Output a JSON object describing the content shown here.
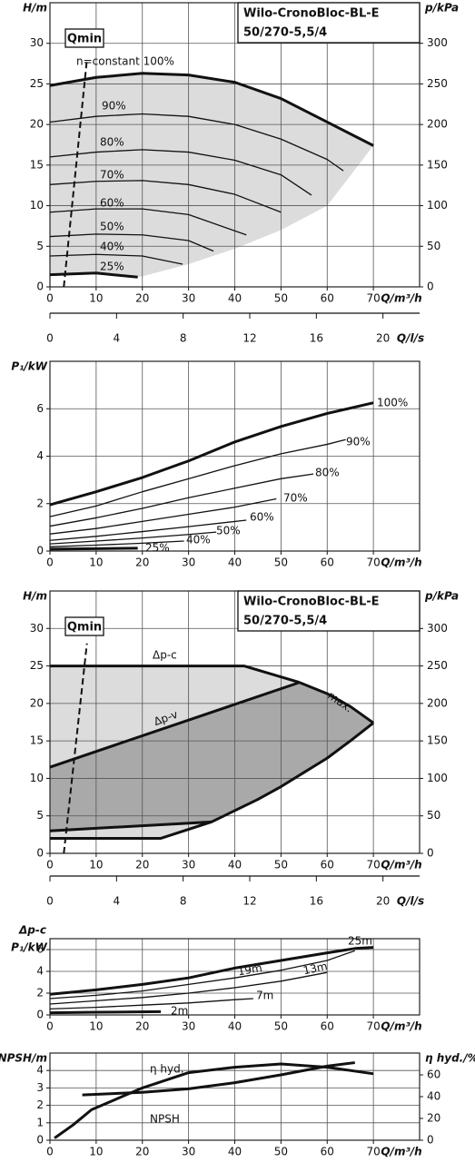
{
  "chart_data": [
    {
      "type": "line",
      "title": "Wilo-CronoBloc-BL-E",
      "subtitle": "50/270-5,5/4",
      "ylabel": "H/m",
      "y2label": "p/kPa",
      "xlabel": "Q/m³/h",
      "qmin_label": "Qmin",
      "grid": true,
      "xlim": [
        0,
        80
      ],
      "xticks": [
        0,
        10,
        20,
        30,
        40,
        50,
        60,
        70
      ],
      "ylim": [
        0,
        35
      ],
      "yticks": [
        0,
        5,
        10,
        15,
        20,
        25,
        30
      ],
      "y2lim": [
        0,
        350
      ],
      "y2ticks": [
        0,
        50,
        100,
        150,
        200,
        250,
        300
      ],
      "areas": [
        {
          "color": "#dcdcdc",
          "x": [
            0,
            10,
            20,
            30,
            40,
            50,
            60,
            70,
            60,
            50,
            40,
            30,
            20,
            19,
            10,
            0
          ],
          "values": [
            24.8,
            25.8,
            26.3,
            26.1,
            25.2,
            23.2,
            20.3,
            17.4,
            10,
            7,
            4.7,
            2.8,
            1.3,
            1.2,
            1.7,
            1.5
          ]
        }
      ],
      "series": [
        {
          "color": "#111",
          "width": 2,
          "dash": true,
          "x": [
            3,
            8
          ],
          "values": [
            0,
            28
          ]
        },
        {
          "label": "n=constant 100%",
          "color": "#111",
          "width": 3,
          "x": [
            0,
            10,
            20,
            30,
            40,
            50,
            60,
            70
          ],
          "values": [
            24.8,
            25.8,
            26.3,
            26.1,
            25.2,
            23.2,
            20.3,
            17.4
          ]
        },
        {
          "label": "90%",
          "color": "#111",
          "width": 1.3,
          "x": [
            0,
            10,
            20,
            30,
            40,
            50,
            60,
            63.5
          ],
          "values": [
            20.3,
            21,
            21.3,
            21,
            20,
            18.2,
            15.7,
            14.3
          ]
        },
        {
          "label": "80%",
          "color": "#111",
          "width": 1.3,
          "x": [
            0,
            10,
            20,
            30,
            40,
            50,
            56.6
          ],
          "values": [
            16,
            16.6,
            16.9,
            16.6,
            15.6,
            13.8,
            11.3
          ]
        },
        {
          "label": "70%",
          "color": "#111",
          "width": 1.3,
          "x": [
            0,
            10,
            20,
            30,
            40,
            50
          ],
          "values": [
            12.6,
            13,
            13.1,
            12.6,
            11.4,
            9.2
          ]
        },
        {
          "label": "60%",
          "color": "#111",
          "width": 1.3,
          "x": [
            0,
            10,
            20,
            30,
            42.5
          ],
          "values": [
            9.2,
            9.6,
            9.6,
            8.9,
            6.4
          ]
        },
        {
          "label": "50%",
          "color": "#111",
          "width": 1.3,
          "x": [
            0,
            10,
            20,
            30,
            35.4
          ],
          "values": [
            6.2,
            6.5,
            6.4,
            5.7,
            4.4
          ]
        },
        {
          "label": "40%",
          "color": "#111",
          "width": 1.3,
          "x": [
            0,
            10,
            20,
            28.7
          ],
          "values": [
            3.8,
            4,
            3.8,
            2.8
          ]
        },
        {
          "label": "25%",
          "color": "#111",
          "width": 3,
          "x": [
            0,
            10,
            19
          ],
          "values": [
            1.5,
            1.7,
            1.2
          ]
        }
      ]
    },
    {
      "type": "axis",
      "xlabel": "Q/l/s",
      "xlim": [
        0,
        22.2
      ],
      "xticks": [
        0,
        4,
        8,
        12,
        16,
        20
      ]
    },
    {
      "type": "line",
      "ylabel": "P₁/kW",
      "xlabel": "Q/m³/h",
      "grid": true,
      "xlim": [
        0,
        80
      ],
      "xticks": [
        0,
        10,
        20,
        30,
        40,
        50,
        60,
        70
      ],
      "ylim": [
        0,
        8
      ],
      "yticks": [
        0,
        2,
        4,
        6
      ],
      "series": [
        {
          "label": "100%",
          "color": "#111",
          "width": 3,
          "x": [
            0,
            10,
            20,
            30,
            40,
            50,
            60,
            70
          ],
          "values": [
            1.95,
            2.5,
            3.1,
            3.8,
            4.6,
            5.25,
            5.8,
            6.25
          ]
        },
        {
          "label": "90%",
          "color": "#111",
          "width": 1.3,
          "x": [
            0,
            10,
            20,
            30,
            40,
            50,
            60,
            64
          ],
          "values": [
            1.45,
            1.9,
            2.5,
            3.05,
            3.6,
            4.1,
            4.5,
            4.7
          ]
        },
        {
          "label": "80%",
          "color": "#111",
          "width": 1.3,
          "x": [
            0,
            10,
            20,
            30,
            40,
            50,
            57
          ],
          "values": [
            1.05,
            1.4,
            1.8,
            2.25,
            2.65,
            3.05,
            3.25
          ]
        },
        {
          "label": "70%",
          "color": "#111",
          "width": 1.3,
          "x": [
            0,
            10,
            20,
            30,
            40,
            49
          ],
          "values": [
            0.72,
            0.95,
            1.25,
            1.55,
            1.85,
            2.2
          ]
        },
        {
          "label": "60%",
          "color": "#111",
          "width": 1.3,
          "x": [
            0,
            10,
            20,
            30,
            42.5
          ],
          "values": [
            0.45,
            0.62,
            0.82,
            1.03,
            1.3
          ]
        },
        {
          "label": "50%",
          "color": "#111",
          "width": 1.3,
          "x": [
            0,
            10,
            20,
            30,
            36
          ],
          "values": [
            0.3,
            0.42,
            0.55,
            0.7,
            0.8
          ]
        },
        {
          "label": "40%",
          "color": "#111",
          "width": 1.3,
          "x": [
            0,
            10,
            20,
            29
          ],
          "values": [
            0.18,
            0.25,
            0.33,
            0.42
          ]
        },
        {
          "label": "25%",
          "color": "#111",
          "width": 3,
          "x": [
            0,
            10,
            19
          ],
          "values": [
            0.08,
            0.1,
            0.12
          ]
        }
      ]
    },
    {
      "type": "line",
      "title": "Wilo-CronoBloc-BL-E",
      "subtitle": "50/270-5,5/4",
      "ylabel": "H/m",
      "y2label": "p/kPa",
      "xlabel": "Q/m³/h",
      "qmin_label": "Qmin",
      "grid": true,
      "xlim": [
        0,
        80
      ],
      "xticks": [
        0,
        10,
        20,
        30,
        40,
        50,
        60,
        70
      ],
      "ylim": [
        0,
        35
      ],
      "yticks": [
        0,
        5,
        10,
        15,
        20,
        25,
        30
      ],
      "y2lim": [
        0,
        350
      ],
      "y2ticks": [
        0,
        50,
        100,
        150,
        200,
        250,
        300
      ],
      "areas": [
        {
          "color": "#dcdcdc",
          "x": [
            0,
            42,
            54,
            60,
            65,
            70,
            65,
            60,
            55,
            50,
            45,
            40,
            35,
            24,
            0
          ],
          "values": [
            25,
            25,
            22.8,
            21.3,
            19.6,
            17.4,
            15,
            12.7,
            10.8,
            8.9,
            7.2,
            5.7,
            4.2,
            2,
            2
          ]
        },
        {
          "color": "#a9a9a9",
          "x": [
            0,
            54,
            60,
            65,
            70,
            65,
            60,
            55,
            50,
            45,
            40,
            35,
            0
          ],
          "values": [
            11.5,
            22.8,
            21.3,
            19.6,
            17.4,
            15,
            12.7,
            10.8,
            8.9,
            7.2,
            5.7,
            4.2,
            3
          ]
        }
      ],
      "series": [
        {
          "color": "#111",
          "width": 2,
          "dash": true,
          "x": [
            3,
            8
          ],
          "values": [
            0,
            28
          ]
        },
        {
          "label": "Δp-c",
          "color": "#111",
          "width": 3,
          "x": [
            0,
            42,
            54
          ],
          "values": [
            25,
            25,
            22.8
          ]
        },
        {
          "label": "Δp-v",
          "color": "#111",
          "width": 3,
          "x": [
            0,
            54
          ],
          "values": [
            11.5,
            22.8
          ]
        },
        {
          "label": "max.",
          "color": "#111",
          "width": 3,
          "x": [
            54,
            60,
            65,
            70
          ],
          "values": [
            22.8,
            21.3,
            19.6,
            17.4
          ]
        },
        {
          "color": "#111",
          "width": 3,
          "x": [
            70,
            65,
            60,
            55,
            50,
            45,
            40,
            35,
            24,
            0
          ],
          "values": [
            17.4,
            15,
            12.7,
            10.8,
            8.9,
            7.2,
            5.7,
            4.2,
            2,
            2
          ]
        },
        {
          "color": "#111",
          "width": 3,
          "x": [
            0,
            35
          ],
          "values": [
            3,
            4.2
          ]
        }
      ]
    },
    {
      "type": "axis",
      "xlabel": "Q/l/s",
      "xlim": [
        0,
        22.2
      ],
      "xticks": [
        0,
        4,
        8,
        12,
        16,
        20
      ]
    },
    {
      "type": "line",
      "control_mode": "Δp-c",
      "ylabel": "P₁/kW",
      "xlabel": "Q/m³/h",
      "grid": true,
      "xlim": [
        0,
        80
      ],
      "xticks": [
        0,
        10,
        20,
        30,
        40,
        50,
        60,
        70
      ],
      "ylim": [
        0,
        7
      ],
      "yticks": [
        0,
        2,
        4,
        6
      ],
      "series": [
        {
          "label": "25m",
          "color": "#111",
          "width": 3,
          "x": [
            0,
            10,
            20,
            30,
            40,
            50,
            60,
            66,
            70
          ],
          "values": [
            1.9,
            2.3,
            2.8,
            3.4,
            4.3,
            5,
            5.7,
            6.1,
            6.2
          ]
        },
        {
          "label": "19m",
          "color": "#111",
          "width": 1.3,
          "x": [
            0,
            10,
            20,
            30,
            40,
            50,
            60,
            66
          ],
          "values": [
            1.5,
            1.8,
            2.2,
            2.8,
            3.4,
            4.1,
            5,
            5.9
          ]
        },
        {
          "label": "13m",
          "color": "#111",
          "width": 1.3,
          "x": [
            0,
            10,
            20,
            30,
            40,
            50,
            60
          ],
          "values": [
            1,
            1.3,
            1.6,
            2,
            2.5,
            3.1,
            3.9
          ]
        },
        {
          "label": "7m",
          "color": "#111",
          "width": 1.3,
          "x": [
            0,
            10,
            20,
            30,
            40,
            44
          ],
          "values": [
            0.55,
            0.7,
            0.9,
            1.1,
            1.4,
            1.5
          ]
        },
        {
          "label": "2m",
          "color": "#111",
          "width": 3,
          "x": [
            0,
            10,
            24
          ],
          "values": [
            0.2,
            0.25,
            0.3
          ]
        }
      ]
    },
    {
      "type": "line",
      "ylabel": "NPSH/m",
      "y2label": "η hyd./%",
      "xlabel": "Q/m³/h",
      "grid": true,
      "xlim": [
        0,
        80
      ],
      "xticks": [
        0,
        10,
        20,
        30,
        40,
        50,
        60,
        70
      ],
      "ylim": [
        0,
        5
      ],
      "yticks": [
        0,
        1,
        2,
        3,
        4
      ],
      "y2lim": [
        0,
        80
      ],
      "y2ticks": [
        0,
        20,
        40,
        60
      ],
      "series": [
        {
          "label": "η hyd.",
          "axis": "y2",
          "color": "#111",
          "width": 3,
          "x": [
            1,
            5,
            9,
            20,
            30,
            40,
            50,
            60,
            70
          ],
          "values": [
            2,
            14,
            28,
            48,
            62,
            67,
            70,
            67,
            61
          ]
        },
        {
          "label": "NPSH",
          "color": "#111",
          "width": 3,
          "x": [
            7,
            20,
            30,
            40,
            50,
            60,
            66
          ],
          "values": [
            2.6,
            2.75,
            2.95,
            3.3,
            3.75,
            4.25,
            4.45
          ]
        }
      ]
    }
  ]
}
